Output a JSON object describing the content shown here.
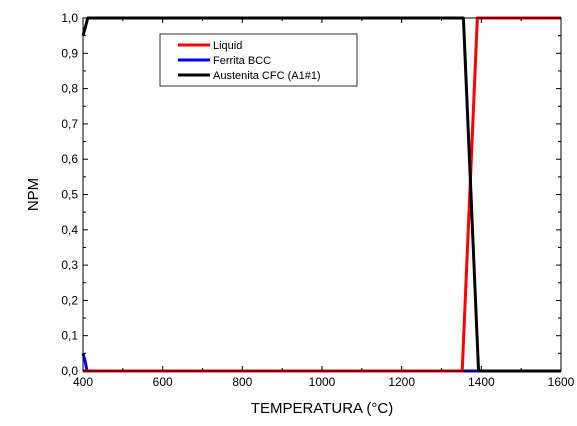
{
  "chart_data": {
    "type": "line",
    "title": "",
    "xlabel": "TEMPERATURA (°C)",
    "ylabel": "NPM",
    "xlim": [
      400,
      1600
    ],
    "ylim": [
      0,
      1.0
    ],
    "x_ticks": [
      400,
      600,
      800,
      1000,
      1200,
      1400,
      1600
    ],
    "y_ticks": [
      0,
      0.1,
      0.2,
      0.3,
      0.4,
      0.5,
      0.6,
      0.7,
      0.8,
      0.9,
      1.0
    ],
    "x_tick_labels": [
      "400",
      "600",
      "800",
      "1000",
      "1200",
      "1400",
      "1600"
    ],
    "y_tick_labels": [
      "0,0",
      "0,1",
      "0,2",
      "0,3",
      "0,4",
      "0,5",
      "0,6",
      "0,7",
      "0,8",
      "0,9",
      "1,0"
    ],
    "grid": false,
    "legend_position": "top-left-inside",
    "series": [
      {
        "name": "Liquid",
        "color": "#ff0000",
        "points": [
          [
            400,
            0
          ],
          [
            1352,
            0
          ],
          [
            1390,
            1.0
          ],
          [
            1600,
            1.0
          ]
        ]
      },
      {
        "name": "Ferrita BCC",
        "color": "#0000ff",
        "points": [
          [
            400,
            0.05
          ],
          [
            405,
            0.03
          ],
          [
            410,
            0.0
          ],
          [
            1600,
            0.0
          ]
        ]
      },
      {
        "name": "Austenita CFC (A1#1)",
        "color": "#000000",
        "points": [
          [
            400,
            0.95
          ],
          [
            405,
            0.97
          ],
          [
            412,
            1.0
          ],
          [
            1355,
            1.0
          ],
          [
            1393,
            0
          ],
          [
            1600,
            0
          ]
        ]
      }
    ]
  }
}
